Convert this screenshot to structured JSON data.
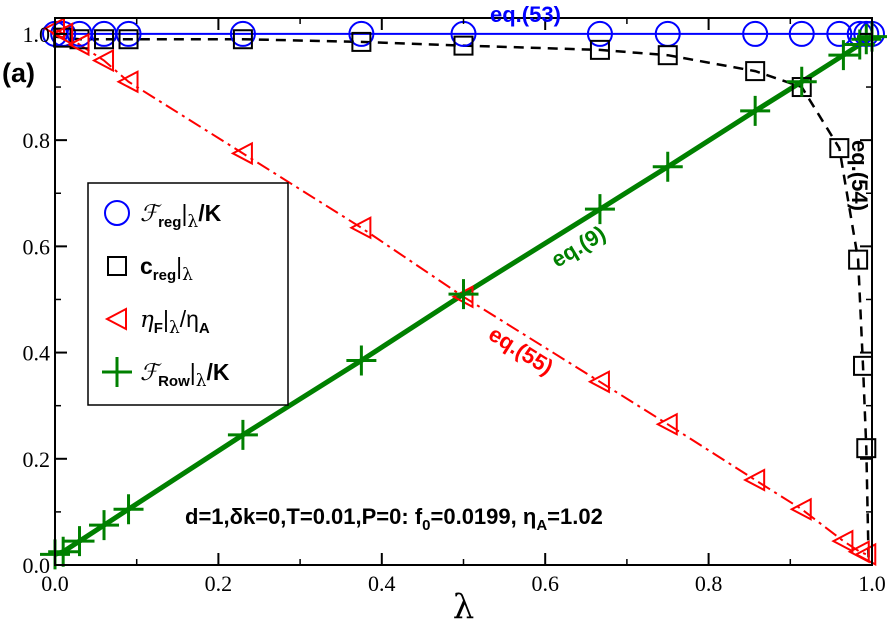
{
  "chart_data": {
    "type": "line",
    "panel_label": "(a)",
    "xlabel": "λ",
    "ylabel": "",
    "xlim": [
      0,
      1
    ],
    "ylim": [
      0,
      1.03
    ],
    "xticks": [
      0.0,
      0.2,
      0.4,
      0.6,
      0.8,
      1.0
    ],
    "xtick_labels": [
      "0.0",
      "0.2",
      "0.4",
      "0.6",
      "0.8",
      "1.0"
    ],
    "yticks": [
      0.0,
      0.2,
      0.4,
      0.6,
      0.8,
      1.0
    ],
    "ytick_labels": [
      "0.0",
      "0.2",
      "0.4",
      "0.6",
      "0.8",
      "1.0"
    ],
    "legend_position": "left",
    "parameters": "d=1,δk=0,T=0.01,P=0: f0=0.0199, ηA=1.02",
    "series": [
      {
        "name": "Freg|λ/K",
        "color": "#0000ff",
        "marker": "circle",
        "x": [
          0.0,
          0.01,
          0.03,
          0.06,
          0.09,
          0.23,
          0.375,
          0.5,
          0.667,
          0.75,
          0.857,
          0.914,
          0.96,
          0.985,
          0.993,
          1.0
        ],
        "y": [
          1.0,
          1.0,
          1.0,
          1.0,
          1.0,
          1.0,
          1.0,
          1.0,
          1.0,
          1.0,
          1.0,
          1.0,
          1.0,
          1.0,
          1.0,
          1.0
        ]
      },
      {
        "name": "creg|λ",
        "color": "#000000",
        "marker": "square",
        "x": [
          0.01,
          0.03,
          0.06,
          0.09,
          0.23,
          0.375,
          0.5,
          0.667,
          0.75,
          0.857,
          0.914,
          0.96,
          0.983,
          0.989,
          0.993
        ],
        "y": [
          0.993,
          0.99,
          0.99,
          0.99,
          0.99,
          0.985,
          0.978,
          0.97,
          0.96,
          0.93,
          0.9,
          0.785,
          0.575,
          0.375,
          0.22
        ]
      },
      {
        "name": "ηF|λ/ηA",
        "color": "#ff0000",
        "marker": "triangle",
        "x": [
          0.0,
          0.01,
          0.03,
          0.06,
          0.09,
          0.23,
          0.375,
          0.5,
          0.667,
          0.75,
          0.857,
          0.914,
          0.965,
          0.985,
          0.993
        ],
        "y": [
          1.01,
          1.0,
          0.98,
          0.95,
          0.91,
          0.775,
          0.635,
          0.505,
          0.345,
          0.265,
          0.16,
          0.105,
          0.045,
          0.025,
          0.02
        ]
      },
      {
        "name": "FRow|λ/K",
        "color": "#008000",
        "marker": "plus",
        "x": [
          0.0,
          0.01,
          0.03,
          0.06,
          0.09,
          0.23,
          0.375,
          0.5,
          0.667,
          0.75,
          0.857,
          0.914,
          0.965,
          0.985,
          0.993,
          1.0
        ],
        "y": [
          0.02,
          0.025,
          0.045,
          0.075,
          0.105,
          0.245,
          0.385,
          0.51,
          0.67,
          0.75,
          0.855,
          0.91,
          0.96,
          0.98,
          0.99,
          0.995
        ]
      }
    ],
    "annotations": [
      {
        "text": "eq.(53)",
        "color": "#0000ff"
      },
      {
        "text": "eq.(54)",
        "color": "#000000"
      },
      {
        "text": "eq.(9)",
        "color": "#008000"
      },
      {
        "text": "eq.(55)",
        "color": "#ff0000"
      }
    ]
  },
  "legend": {
    "entries": [
      {
        "symbol": "ℱ",
        "main_sub": "reg",
        "mid": "|",
        "lam": "λ",
        "tail": "/K",
        "tail_sub": ""
      },
      {
        "symbol": "",
        "main": "c",
        "main_sub": "reg",
        "mid": "|",
        "lam": "λ",
        "tail": "",
        "tail_sub": ""
      },
      {
        "symbol": "η",
        "main_sub": "F",
        "mid": "|",
        "lam": "λ",
        "tail": "/η",
        "tail_sub": "A"
      },
      {
        "symbol": "ℱ",
        "main_sub": "Row",
        "mid": "|",
        "lam": "λ",
        "tail": "/K",
        "tail_sub": ""
      }
    ]
  },
  "params": {
    "prefix": "d=1,δk=0,T=0.01,P=0: f",
    "sub1": "0",
    "mid": "=0.0199, η",
    "sub2": "A",
    "suffix": "=1.02"
  }
}
